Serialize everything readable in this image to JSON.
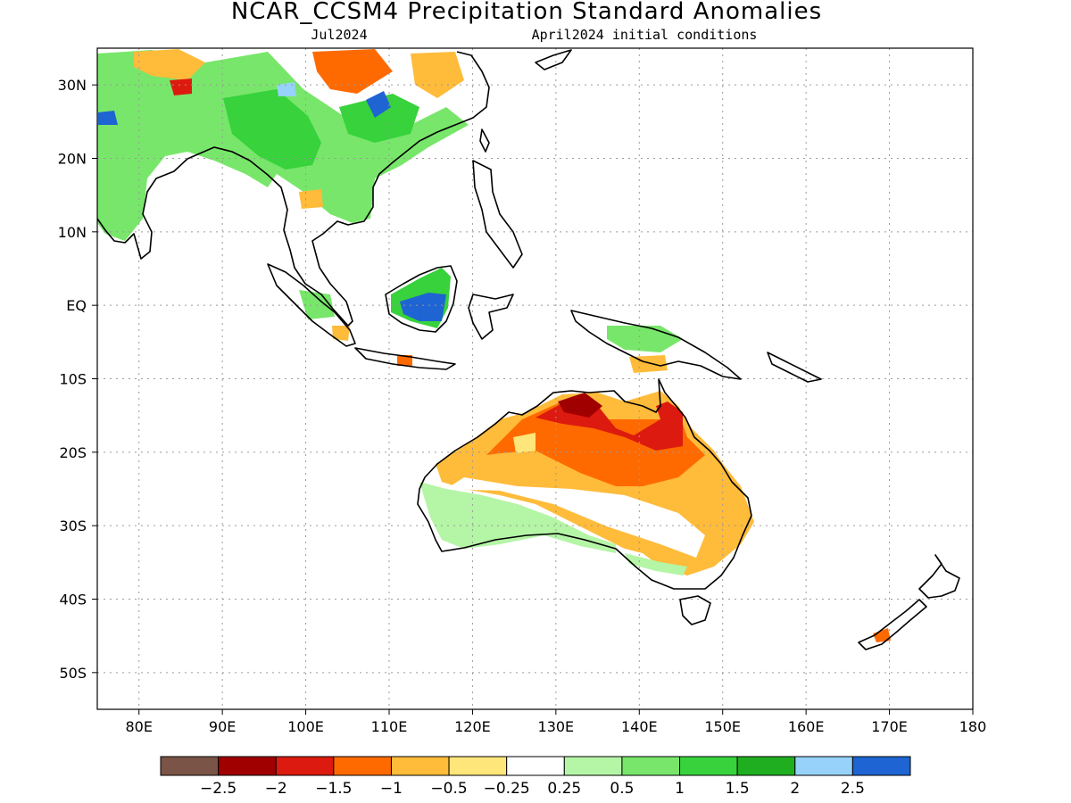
{
  "title": "NCAR_CCSM4 Precipitation Standard Anomalies",
  "valid_month": "Jul2024",
  "init_conditions": "April2024 initial conditions",
  "lon_labels": [
    "80E",
    "90E",
    "100E",
    "110E",
    "120E",
    "130E",
    "140E",
    "150E",
    "160E",
    "170E",
    "180"
  ],
  "lat_labels": [
    "30N",
    "20N",
    "10N",
    "EQ",
    "10S",
    "20S",
    "30S",
    "40S",
    "50S"
  ],
  "lon_values": [
    80,
    90,
    100,
    110,
    120,
    130,
    140,
    150,
    160,
    170,
    180
  ],
  "lat_values": [
    30,
    20,
    10,
    0,
    -10,
    -20,
    -30,
    -40,
    -50
  ],
  "map_extent": {
    "lon_min": 75,
    "lon_max": 180,
    "lat_min": -55,
    "lat_max": 35
  },
  "legend": {
    "colors": [
      "#7a5446",
      "#a00000",
      "#dc1a0f",
      "#ff6a00",
      "#ffbb3a",
      "#ffe67a",
      "#ffffff",
      "#b4f5a6",
      "#78e66a",
      "#37d23c",
      "#1fae1f",
      "#96d2fa",
      "#1e64d2"
    ],
    "labels": [
      "−2.5",
      "−2",
      "−1.5",
      "−1",
      "−0.5",
      "−0.25",
      "0.25",
      "0.5",
      "1",
      "1.5",
      "2",
      "2.5"
    ]
  }
}
